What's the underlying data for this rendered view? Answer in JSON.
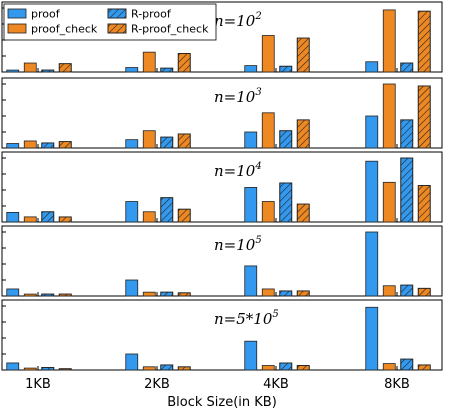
{
  "chart_data": {
    "type": "bar",
    "xlabel": "Block Size(in KB)",
    "categories": [
      "1KB",
      "2KB",
      "4KB",
      "8KB"
    ],
    "legend": {
      "placement": "top-left",
      "entries": [
        "proof",
        "proof_check",
        "R-proof",
        "R-proof_check"
      ]
    },
    "colors": {
      "proof": "#3399ee",
      "proof_check": "#ee8822",
      "edge": "#222222"
    },
    "hatched_series": [
      "R-proof",
      "R-proof_check"
    ],
    "grid": false,
    "panels": [
      {
        "label_base": "n=10",
        "label_exp": "2",
        "ylim": [
          0,
          1
        ],
        "series": [
          {
            "name": "proof",
            "values": [
              0.03,
              0.07,
              0.1,
              0.16
            ]
          },
          {
            "name": "proof_check",
            "values": [
              0.14,
              0.31,
              0.57,
              0.97
            ]
          },
          {
            "name": "R-proof",
            "values": [
              0.03,
              0.06,
              0.09,
              0.14
            ]
          },
          {
            "name": "R-proof_check",
            "values": [
              0.13,
              0.29,
              0.53,
              0.95
            ]
          }
        ]
      },
      {
        "label_base": "n=10",
        "label_exp": "3",
        "ylim": [
          0,
          1
        ],
        "series": [
          {
            "name": "proof",
            "values": [
              0.07,
              0.13,
              0.25,
              0.5
            ]
          },
          {
            "name": "proof_check",
            "values": [
              0.11,
              0.27,
              0.55,
              1.0
            ]
          },
          {
            "name": "R-proof",
            "values": [
              0.08,
              0.17,
              0.27,
              0.44
            ]
          },
          {
            "name": "R-proof_check",
            "values": [
              0.1,
              0.22,
              0.44,
              0.97
            ]
          }
        ]
      },
      {
        "label_base": "n=10",
        "label_exp": "4",
        "ylim": [
          0,
          1
        ],
        "series": [
          {
            "name": "proof",
            "values": [
              0.15,
              0.32,
              0.54,
              0.95
            ]
          },
          {
            "name": "proof_check",
            "values": [
              0.08,
              0.16,
              0.32,
              0.62
            ]
          },
          {
            "name": "R-proof",
            "values": [
              0.16,
              0.38,
              0.61,
              1.0
            ]
          },
          {
            "name": "R-proof_check",
            "values": [
              0.08,
              0.2,
              0.28,
              0.57
            ]
          }
        ]
      },
      {
        "label_base": "n=10",
        "label_exp": "5",
        "ylim": [
          0,
          1
        ],
        "series": [
          {
            "name": "proof",
            "values": [
              0.11,
              0.25,
              0.47,
              1.0
            ]
          },
          {
            "name": "proof_check",
            "values": [
              0.03,
              0.06,
              0.11,
              0.16
            ]
          },
          {
            "name": "R-proof",
            "values": [
              0.03,
              0.06,
              0.08,
              0.17
            ]
          },
          {
            "name": "R-proof_check",
            "values": [
              0.03,
              0.05,
              0.08,
              0.12
            ]
          }
        ]
      },
      {
        "label_base": "n=5*10",
        "label_exp": "5",
        "ylim": [
          0,
          1
        ],
        "series": [
          {
            "name": "proof",
            "values": [
              0.11,
              0.25,
              0.45,
              0.98
            ]
          },
          {
            "name": "proof_check",
            "values": [
              0.03,
              0.05,
              0.07,
              0.1
            ]
          },
          {
            "name": "R-proof",
            "values": [
              0.04,
              0.08,
              0.11,
              0.17
            ]
          },
          {
            "name": "R-proof_check",
            "values": [
              0.02,
              0.05,
              0.07,
              0.08
            ]
          }
        ]
      }
    ]
  }
}
